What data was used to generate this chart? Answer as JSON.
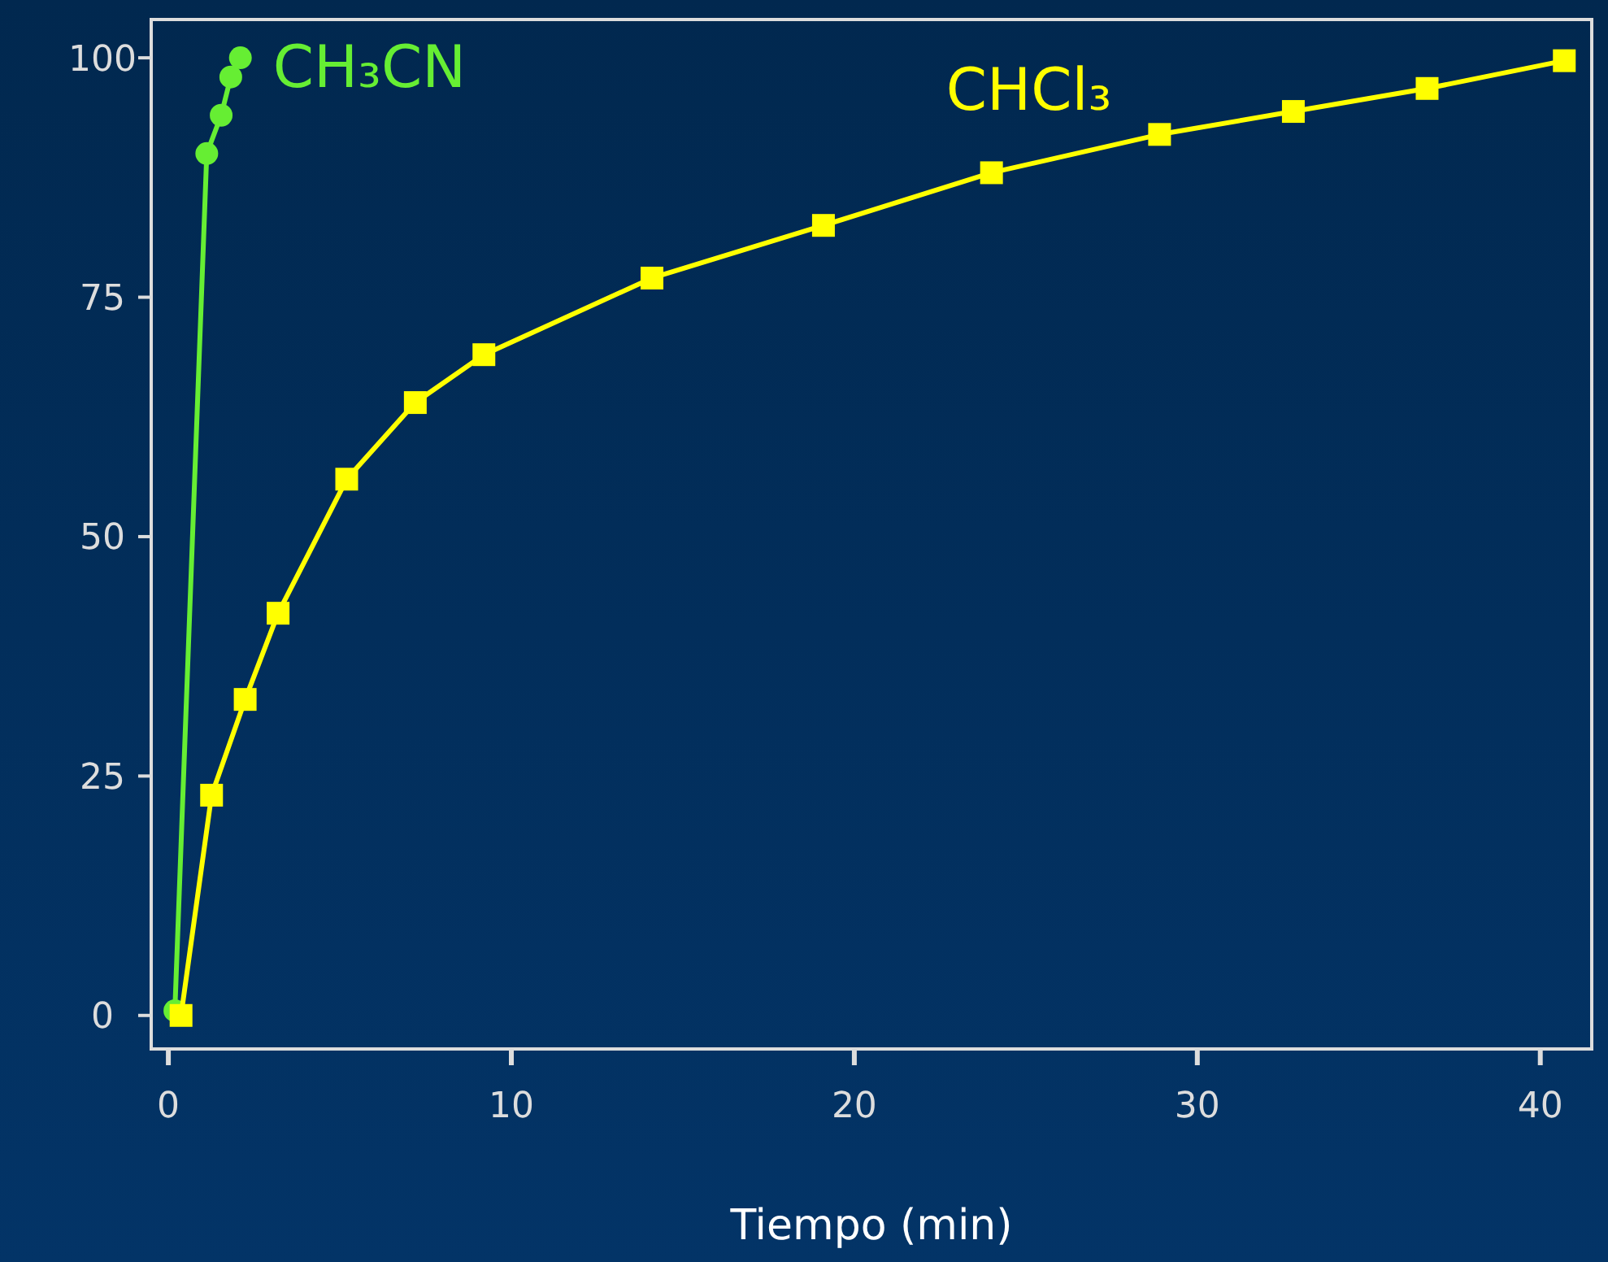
{
  "chart_data": {
    "type": "line",
    "xlabel": "Tiempo (min)",
    "xlim": [
      -0.5,
      41.5
    ],
    "ylim": [
      -3.5,
      104
    ],
    "xticks": [
      0,
      10,
      20,
      30,
      40
    ],
    "yticks": [
      0,
      25,
      50,
      75,
      100
    ],
    "grid": false,
    "series": [
      {
        "name": "CH₃CN",
        "color": "#66ee33",
        "marker": "circle",
        "x": [
          0.19,
          1.12,
          1.54,
          1.82,
          2.1
        ],
        "values": [
          0.5,
          90,
          94,
          98,
          100
        ]
      },
      {
        "name": "CHCl₃",
        "color": "#ffff00",
        "marker": "square",
        "x": [
          0.37,
          1.26,
          2.24,
          3.2,
          5.2,
          7.2,
          9.2,
          14.1,
          19.1,
          24.0,
          28.9,
          32.8,
          36.7,
          40.7
        ],
        "values": [
          0,
          23,
          33,
          42,
          56,
          64,
          69,
          77,
          82.5,
          88,
          92,
          94.4,
          96.8,
          99.7
        ]
      }
    ]
  }
}
